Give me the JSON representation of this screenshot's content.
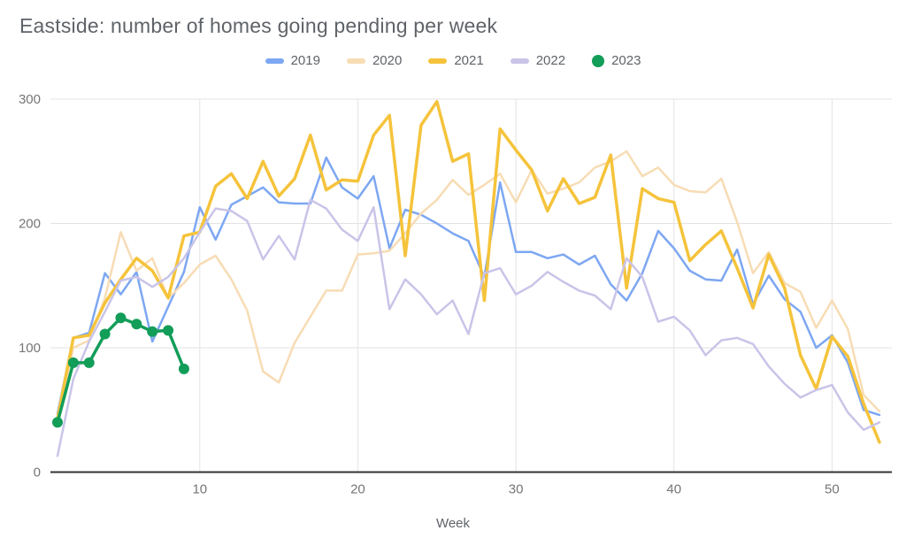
{
  "title": "Eastside: number of homes going pending per week",
  "axis": {
    "x_title": "Week",
    "x_ticks": [
      10,
      20,
      30,
      40,
      50
    ],
    "y_ticks": [
      0,
      100,
      200,
      300
    ],
    "ylim": [
      0,
      300
    ],
    "xlim": [
      1,
      53
    ]
  },
  "colors": {
    "grid": "#e3e3e3",
    "baseline": "#333333",
    "tick_text": "#757575",
    "title_text": "#5f6368"
  },
  "chart_data": {
    "type": "line",
    "title": "Eastside: number of homes going pending per week",
    "xlabel": "Week",
    "ylabel": "",
    "ylim": [
      0,
      300
    ],
    "x": [
      1,
      2,
      3,
      4,
      5,
      6,
      7,
      8,
      9,
      10,
      11,
      12,
      13,
      14,
      15,
      16,
      17,
      18,
      19,
      20,
      21,
      22,
      23,
      24,
      25,
      26,
      27,
      28,
      29,
      30,
      31,
      32,
      33,
      34,
      35,
      36,
      37,
      38,
      39,
      40,
      41,
      42,
      43,
      44,
      45,
      46,
      47,
      48,
      49,
      50,
      51,
      52,
      53
    ],
    "legend_position": "top",
    "grid": true,
    "series": [
      {
        "name": "2019",
        "color": "#7da7f2",
        "width": 2.5,
        "marker": false,
        "values": [
          47,
          108,
          112,
          160,
          143,
          161,
          105,
          133,
          161,
          213,
          187,
          215,
          222,
          229,
          217,
          216,
          216,
          253,
          229,
          220,
          238,
          180,
          211,
          207,
          200,
          192,
          186,
          157,
          233,
          177,
          177,
          172,
          175,
          167,
          174,
          151,
          138,
          160,
          194,
          180,
          162,
          155,
          154,
          179,
          135,
          158,
          139,
          129,
          100,
          110,
          88,
          50,
          46
        ]
      },
      {
        "name": "2020",
        "color": "#f7dcb4",
        "width": 2.5,
        "marker": false,
        "values": [
          42,
          100,
          106,
          140,
          193,
          162,
          172,
          140,
          152,
          167,
          174,
          155,
          130,
          81,
          72,
          104,
          125,
          146,
          146,
          175,
          176,
          178,
          192,
          208,
          219,
          235,
          223,
          231,
          240,
          217,
          243,
          224,
          228,
          233,
          245,
          250,
          258,
          238,
          245,
          231,
          226,
          225,
          236,
          201,
          160,
          177,
          152,
          145,
          116,
          138,
          115,
          62,
          49
        ]
      },
      {
        "name": "2021",
        "color": "#f5c33b",
        "width": 3.5,
        "marker": false,
        "values": [
          43,
          108,
          110,
          136,
          155,
          172,
          162,
          140,
          190,
          193,
          230,
          240,
          220,
          250,
          222,
          236,
          271,
          227,
          235,
          234,
          271,
          287,
          174,
          279,
          298,
          250,
          256,
          138,
          276,
          259,
          243,
          210,
          236,
          216,
          221,
          255,
          148,
          228,
          220,
          217,
          170,
          183,
          194,
          164,
          132,
          175,
          148,
          94,
          67,
          109,
          93,
          55,
          24
        ]
      },
      {
        "name": "2022",
        "color": "#c9c4e8",
        "width": 2.5,
        "marker": false,
        "values": [
          13,
          75,
          105,
          129,
          154,
          157,
          149,
          157,
          172,
          193,
          212,
          210,
          202,
          171,
          190,
          171,
          219,
          212,
          195,
          186,
          213,
          131,
          155,
          143,
          127,
          138,
          111,
          160,
          164,
          143,
          150,
          161,
          153,
          146,
          142,
          131,
          172,
          157,
          121,
          125,
          114,
          94,
          106,
          108,
          103,
          85,
          71,
          60,
          66,
          70,
          48,
          34,
          40
        ]
      },
      {
        "name": "2023",
        "color": "#129d58",
        "width": 3.5,
        "marker": true,
        "marker_radius": 6,
        "values": [
          40,
          88,
          88,
          111,
          124,
          119,
          113,
          114,
          83
        ]
      }
    ]
  }
}
